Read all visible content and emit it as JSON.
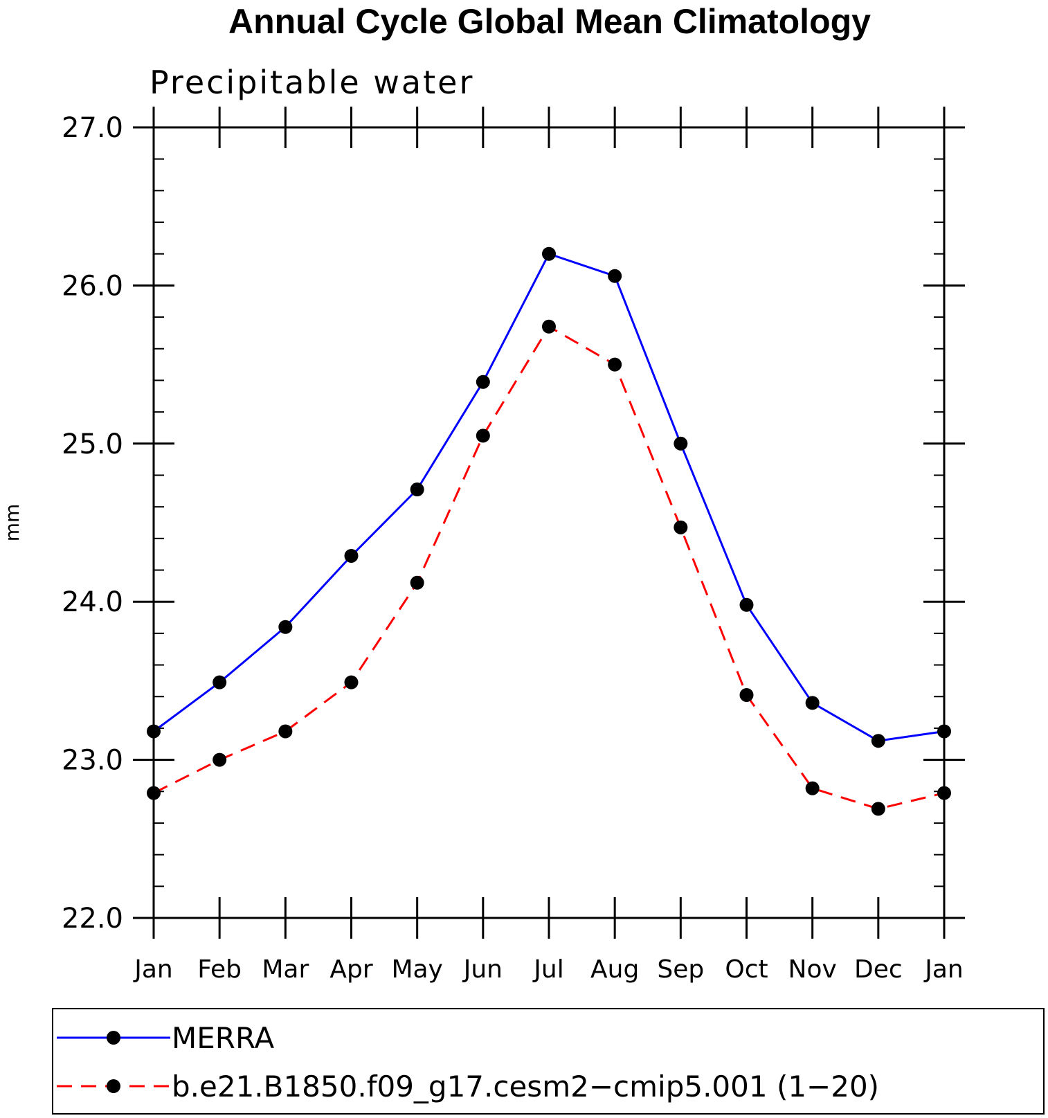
{
  "chart_data": {
    "type": "line",
    "title": "Annual Cycle Global Mean Climatology",
    "subtitle": "Precipitable water",
    "xlabel": "",
    "ylabel": "mm",
    "categories": [
      "Jan",
      "Feb",
      "Mar",
      "Apr",
      "May",
      "Jun",
      "Jul",
      "Aug",
      "Sep",
      "Oct",
      "Nov",
      "Dec",
      "Jan"
    ],
    "yticks": [
      "22.0",
      "23.0",
      "24.0",
      "25.0",
      "26.0",
      "27.0"
    ],
    "ylim": [
      22.0,
      27.0
    ],
    "grid": false,
    "legend_position": "bottom",
    "series": [
      {
        "name": "MERRA",
        "color": "#0000ff",
        "dash": "solid",
        "values": [
          23.18,
          23.49,
          23.84,
          24.29,
          24.71,
          25.39,
          26.2,
          26.06,
          25.0,
          23.98,
          23.36,
          23.12,
          23.18
        ]
      },
      {
        "name": "b.e21.B1850.f09_g17.cesm2−cmip5.001 (1−20)",
        "color": "#ff0000",
        "dash": "dashed",
        "values": [
          22.79,
          23.0,
          23.18,
          23.49,
          24.12,
          25.05,
          25.74,
          25.5,
          24.47,
          23.41,
          22.82,
          22.69,
          22.79
        ]
      }
    ]
  }
}
